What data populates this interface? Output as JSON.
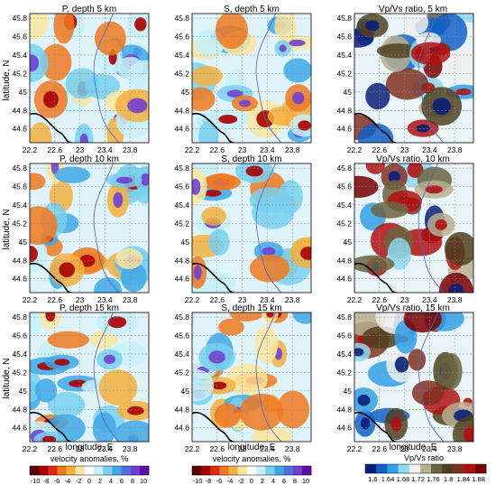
{
  "panels": [
    {
      "title": "P, depth 5 km",
      "type": "P",
      "depth": 5,
      "seed": 11
    },
    {
      "title": "S, depth 5 km",
      "type": "S",
      "depth": 5,
      "seed": 12
    },
    {
      "title": "Vp/Vs ratio, 5 km",
      "type": "VpVs",
      "depth": 5,
      "seed": 13
    },
    {
      "title": "P, depth 10 km",
      "type": "P",
      "depth": 10,
      "seed": 21
    },
    {
      "title": "S, depth 10 km",
      "type": "S",
      "depth": 10,
      "seed": 22
    },
    {
      "title": "Vp/Vs ratio, 10 km",
      "type": "VpVs",
      "depth": 10,
      "seed": 23
    },
    {
      "title": "P, depth 15 km",
      "type": "P",
      "depth": 15,
      "seed": 31
    },
    {
      "title": "S, depth 15 km",
      "type": "S",
      "depth": 15,
      "seed": 32
    },
    {
      "title": "Vp/Vs ratio, 15 km",
      "type": "VpVs",
      "depth": 15,
      "seed": 33
    }
  ],
  "axes": {
    "ylabel": "latitude, N",
    "xlabel": "longitude, E",
    "xticks": [
      "22.2",
      "22.6",
      "23",
      "23.4",
      "23.8"
    ],
    "yticks": [
      "45.8",
      "45.6",
      "45.4",
      "45.2",
      "45",
      "44.8",
      "44.6"
    ],
    "x_range": [
      22.2,
      24.1
    ],
    "y_range": [
      44.45,
      45.85
    ]
  },
  "colorbars": [
    {
      "label": "velocity anomalies, %",
      "ticks": [
        "-10",
        "-8",
        "-6",
        "-4",
        "-2",
        "0",
        "2",
        "4",
        "6",
        "8",
        "10"
      ],
      "colors": [
        "#5a0000",
        "#a80000",
        "#e02a10",
        "#f07820",
        "#f5b040",
        "#fbe6a0",
        "#ffffff",
        "#c8f0f8",
        "#78d0f0",
        "#40a8e8",
        "#5070e0",
        "#7040d0",
        "#5a10a0"
      ]
    },
    {
      "label": "velocity anomalies, %",
      "ticks": [
        "-10",
        "-8",
        "-6",
        "-4",
        "-2",
        "0",
        "2",
        "4",
        "6",
        "8",
        "10"
      ],
      "colors": [
        "#5a0000",
        "#a80000",
        "#e02a10",
        "#f07820",
        "#f5b040",
        "#fbe6a0",
        "#ffffff",
        "#c8f0f8",
        "#78d0f0",
        "#40a8e8",
        "#5070e0",
        "#7040d0",
        "#5a10a0"
      ]
    },
    {
      "label": "Vp/Vs ratio",
      "ticks": [
        "1.6",
        "1.64",
        "1.68",
        "1.72",
        "1.76",
        "1.8",
        "1.84",
        "1.88"
      ],
      "colors": [
        "#0a1e78",
        "#1060c8",
        "#30a0e8",
        "#90d8f0",
        "#f0f0f0",
        "#b8b090",
        "#6a6440",
        "#504020",
        "#803020",
        "#b01010",
        "#780000"
      ]
    }
  ]
}
